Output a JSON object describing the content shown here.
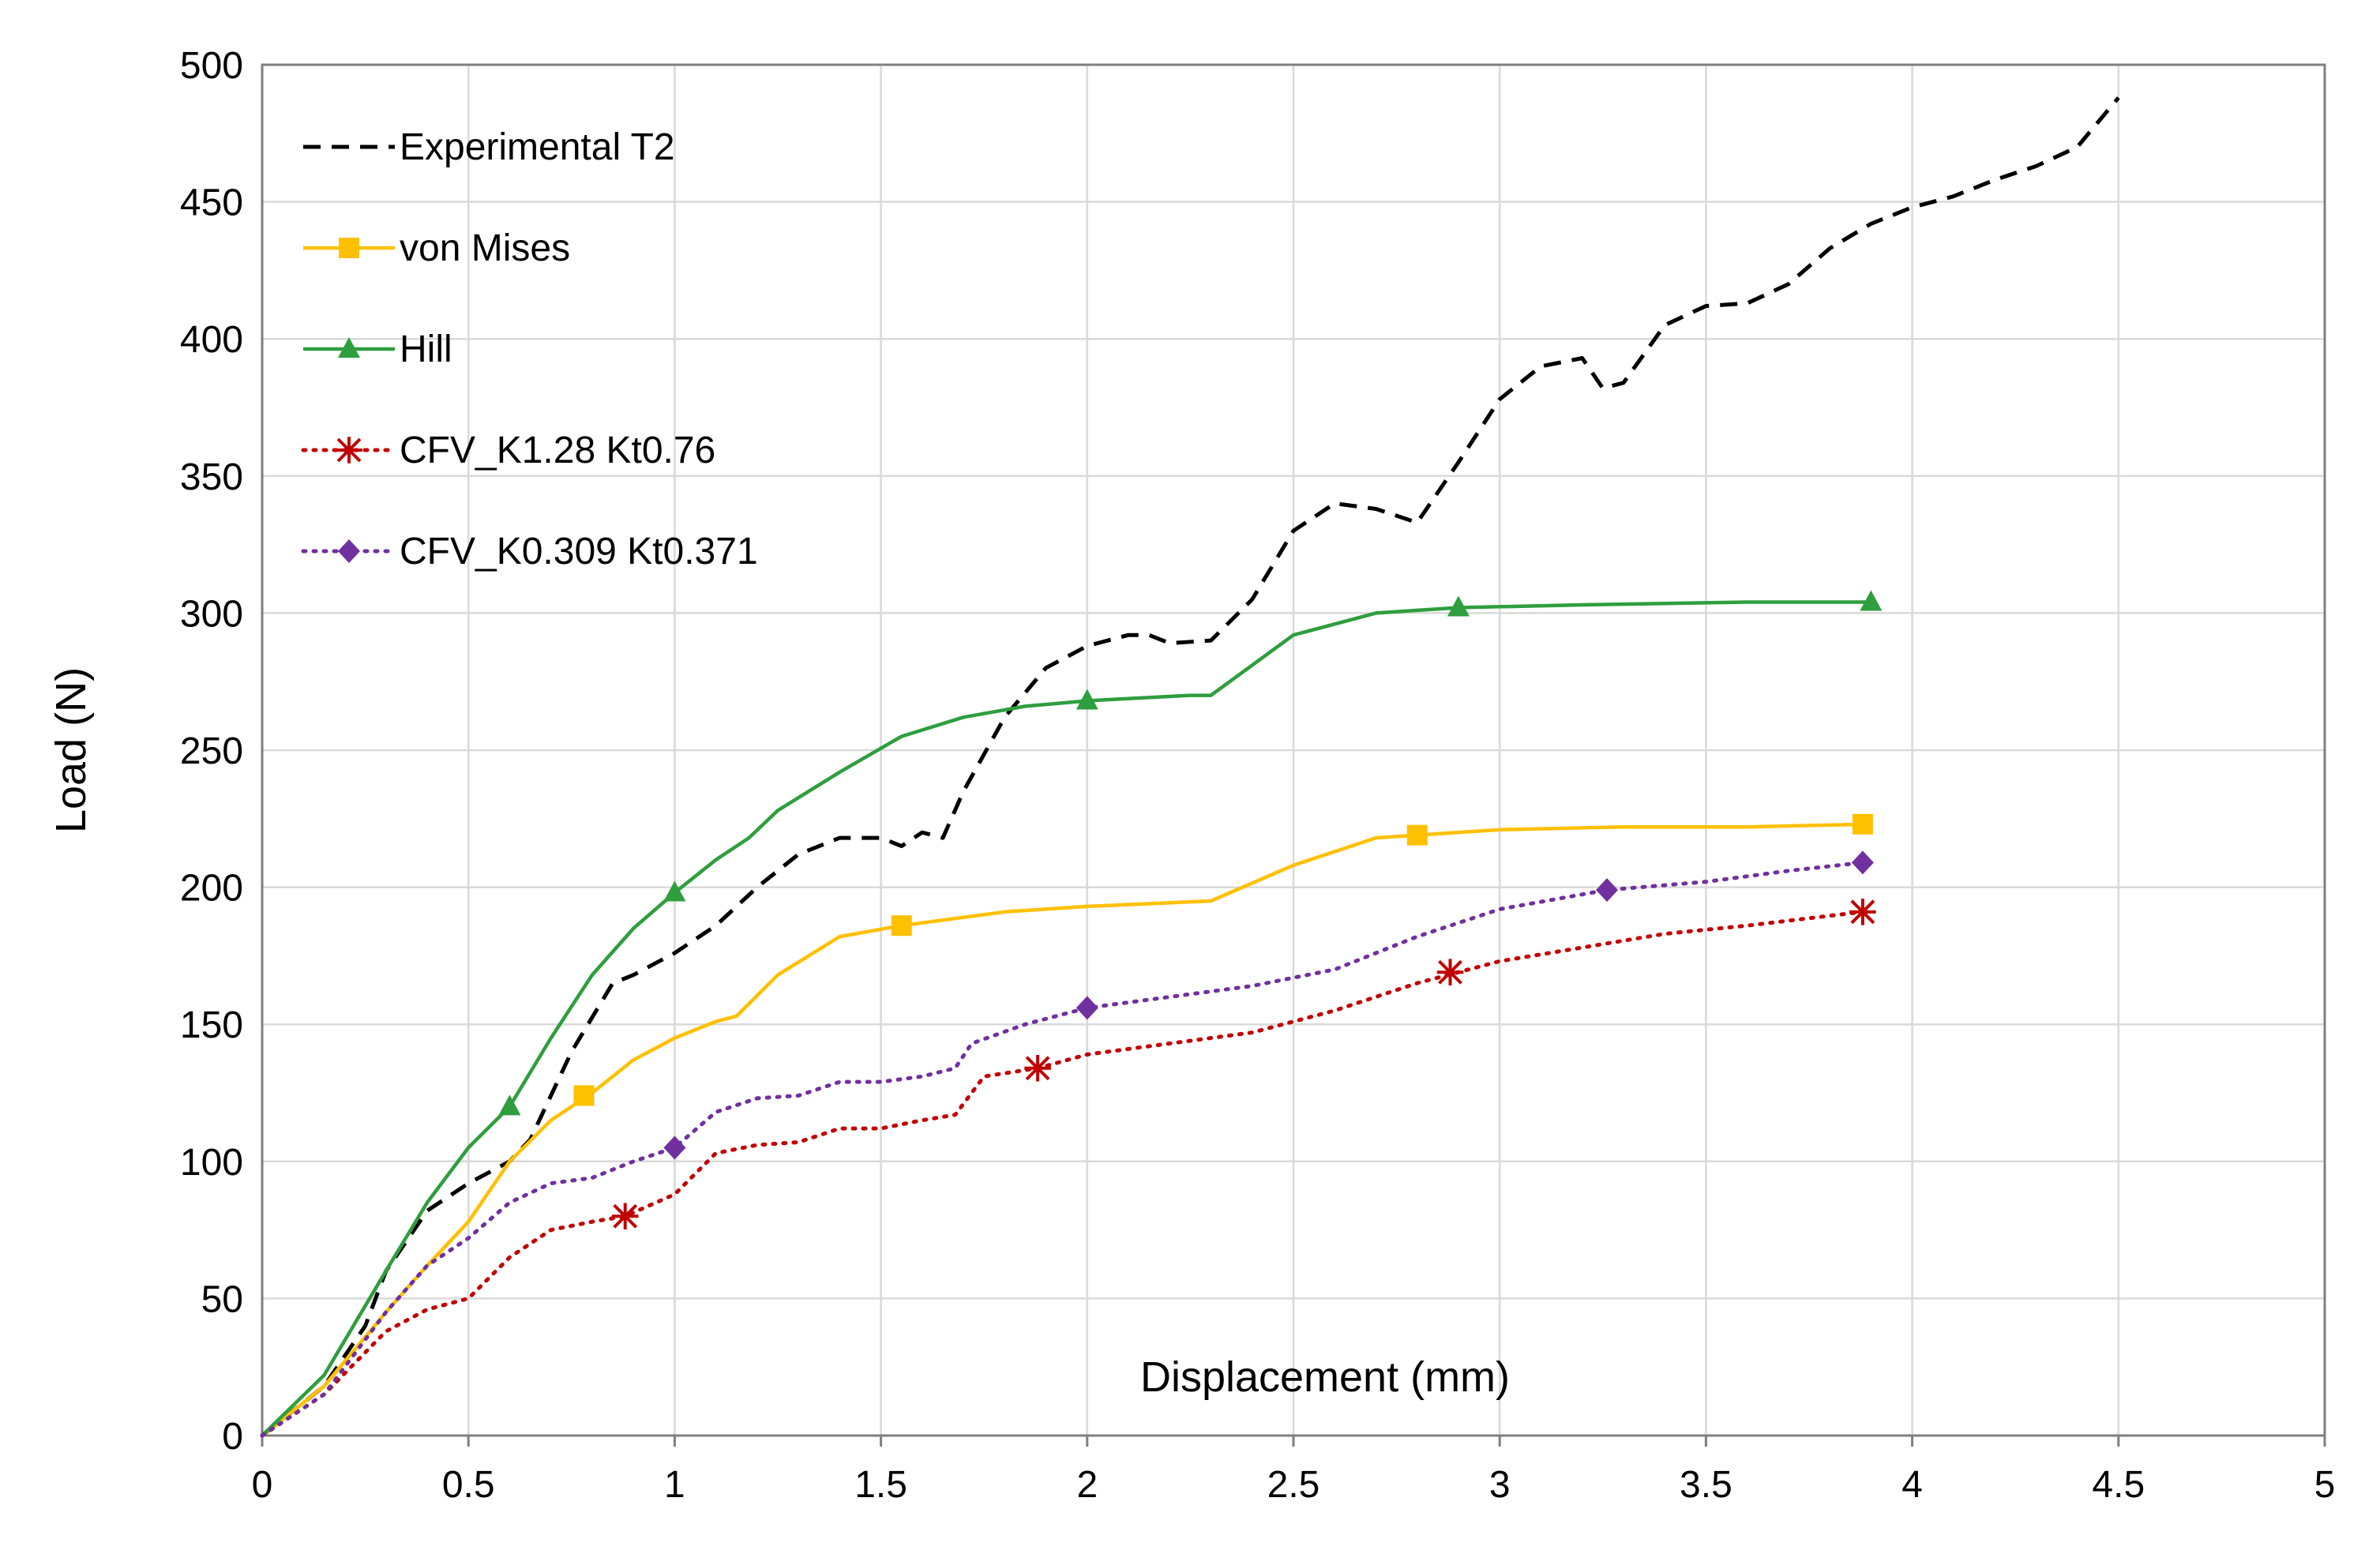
{
  "chart_data": {
    "type": "line",
    "title": "",
    "xlabel": "Displacement (mm)",
    "ylabel": "Load (N)",
    "xlim": [
      0,
      5
    ],
    "ylim": [
      0,
      500
    ],
    "xticks": [
      0,
      0.5,
      1,
      1.5,
      2,
      2.5,
      3,
      3.5,
      4,
      4.5,
      5
    ],
    "xtick_labels": [
      "0",
      "0.5",
      "1",
      "1.5",
      "2",
      "2.5",
      "3",
      "3.5",
      "4",
      "4.5",
      "5"
    ],
    "yticks": [
      0,
      50,
      100,
      150,
      200,
      250,
      300,
      350,
      400,
      450,
      500
    ],
    "ytick_labels": [
      "0",
      "50",
      "100",
      "150",
      "200",
      "250",
      "300",
      "350",
      "400",
      "450",
      "500"
    ],
    "grid": true,
    "legend_position": "top-left",
    "series": [
      {
        "name": "Experimental T2",
        "color": "#000000",
        "dash": "dash",
        "marker": "none",
        "x": [
          0,
          0.15,
          0.25,
          0.3,
          0.4,
          0.5,
          0.6,
          0.65,
          0.75,
          0.85,
          0.9,
          1.0,
          1.1,
          1.2,
          1.3,
          1.4,
          1.5,
          1.55,
          1.6,
          1.65,
          1.7,
          1.8,
          1.9,
          2.0,
          2.1,
          2.15,
          2.2,
          2.3,
          2.4,
          2.5,
          2.6,
          2.7,
          2.8,
          2.9,
          3.0,
          3.1,
          3.2,
          3.25,
          3.3,
          3.4,
          3.5,
          3.6,
          3.7,
          3.8,
          3.9,
          4.0,
          4.1,
          4.2,
          4.3,
          4.4,
          4.5
        ],
        "y": [
          0,
          18,
          40,
          60,
          82,
          92,
          100,
          108,
          140,
          165,
          168,
          176,
          186,
          200,
          212,
          218,
          218,
          215,
          220,
          218,
          235,
          262,
          280,
          288,
          292,
          292,
          289,
          290,
          305,
          330,
          340,
          338,
          333,
          355,
          378,
          390,
          393,
          382,
          384,
          405,
          412,
          413,
          420,
          433,
          442,
          448,
          452,
          458,
          463,
          470,
          488
        ]
      },
      {
        "name": "von Mises",
        "color": "#FFC000",
        "dash": "solid",
        "marker": "square",
        "x": [
          0,
          0.15,
          0.3,
          0.4,
          0.5,
          0.6,
          0.7,
          0.8,
          0.9,
          1.0,
          1.1,
          1.15,
          1.25,
          1.4,
          1.55,
          1.8,
          2.0,
          2.3,
          2.5,
          2.7,
          2.8,
          3.0,
          3.3,
          3.6,
          3.9
        ],
        "y": [
          0,
          18,
          45,
          62,
          78,
          100,
          115,
          125,
          137,
          145,
          151,
          153,
          168,
          182,
          186,
          191,
          193,
          195,
          208,
          218,
          219,
          221,
          222,
          222,
          223
        ],
        "marker_x": [
          0.78,
          1.55,
          2.8,
          3.88
        ],
        "marker_y": [
          124,
          186,
          219,
          223
        ]
      },
      {
        "name": "Hill",
        "color": "#2E9E3E",
        "dash": "solid",
        "marker": "triangle",
        "x": [
          0,
          0.15,
          0.3,
          0.4,
          0.5,
          0.6,
          0.7,
          0.8,
          0.9,
          1.0,
          1.1,
          1.18,
          1.25,
          1.4,
          1.55,
          1.7,
          1.85,
          2.0,
          2.25,
          2.3,
          2.5,
          2.7,
          2.9,
          3.2,
          3.6,
          3.9
        ],
        "y": [
          0,
          22,
          60,
          85,
          105,
          120,
          145,
          168,
          185,
          198,
          210,
          218,
          228,
          242,
          255,
          262,
          266,
          268,
          270,
          270,
          292,
          300,
          302,
          303,
          304,
          304
        ],
        "marker_x": [
          0.6,
          1.0,
          2.0,
          2.9,
          3.9
        ],
        "marker_y": [
          120,
          198,
          268,
          302,
          304
        ]
      },
      {
        "name": "CFV_K1.28 Kt0.76",
        "color": "#C00000",
        "dash": "dot",
        "marker": "asterisk",
        "x": [
          0,
          0.15,
          0.3,
          0.4,
          0.5,
          0.6,
          0.7,
          0.8,
          0.88,
          1.0,
          1.1,
          1.2,
          1.3,
          1.4,
          1.5,
          1.6,
          1.68,
          1.75,
          1.88,
          2.0,
          2.2,
          2.4,
          2.6,
          2.8,
          2.9,
          3.0,
          3.2,
          3.4,
          3.6,
          3.88
        ],
        "y": [
          0,
          15,
          38,
          46,
          50,
          65,
          75,
          78,
          80,
          88,
          103,
          106,
          107,
          112,
          112,
          115,
          117,
          131,
          134,
          139,
          143,
          147,
          155,
          165,
          169,
          173,
          178,
          183,
          186,
          191
        ],
        "marker_x": [
          0.88,
          1.88,
          2.88,
          3.88
        ],
        "marker_y": [
          80,
          134,
          169,
          191
        ]
      },
      {
        "name": "CFV_K0.309 Kt0.371",
        "color": "#7030A0",
        "dash": "dot",
        "marker": "diamond",
        "x": [
          0,
          0.15,
          0.3,
          0.4,
          0.5,
          0.6,
          0.7,
          0.8,
          0.9,
          1.0,
          1.1,
          1.2,
          1.3,
          1.4,
          1.5,
          1.6,
          1.68,
          1.72,
          1.85,
          2.0,
          2.2,
          2.4,
          2.6,
          2.8,
          3.0,
          3.26,
          3.5,
          3.7,
          3.88
        ],
        "y": [
          0,
          15,
          45,
          62,
          72,
          85,
          92,
          94,
          100,
          105,
          118,
          123,
          124,
          129,
          129,
          131,
          134,
          143,
          150,
          156,
          160,
          164,
          170,
          182,
          192,
          199,
          202,
          206,
          209
        ],
        "marker_x": [
          1.0,
          2.0,
          3.26,
          3.88
        ],
        "marker_y": [
          105,
          156,
          199,
          209
        ]
      }
    ]
  }
}
